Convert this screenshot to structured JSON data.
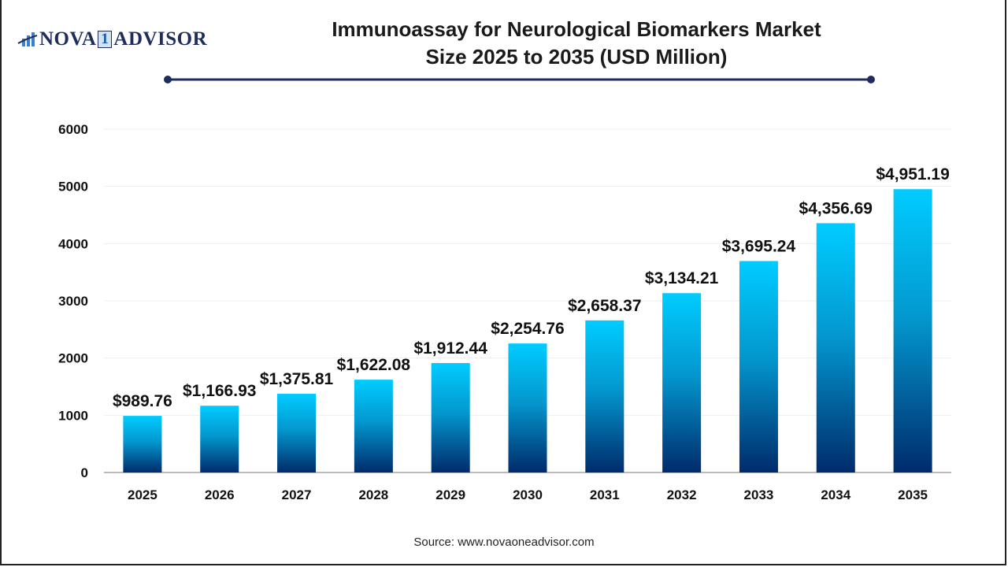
{
  "logo": {
    "text_left": "NOVA",
    "text_mid": "1",
    "text_right": "ADVISOR"
  },
  "title_line1": "Immunoassay for Neurological Biomarkers Market",
  "title_line2": "Size 2025 to 2035 (USD Million)",
  "source": "Source: www.novaoneadvisor.com",
  "colors": {
    "bar_top": "#00CCFF",
    "bar_bottom": "#002B6B",
    "title_rule": "#1f2d5c"
  },
  "chart_data": {
    "type": "bar",
    "categories": [
      "2025",
      "2026",
      "2027",
      "2028",
      "2029",
      "2030",
      "2031",
      "2032",
      "2033",
      "2034",
      "2035"
    ],
    "values": [
      989.76,
      1166.93,
      1375.81,
      1622.08,
      1912.44,
      2254.76,
      2658.37,
      3134.21,
      3695.24,
      4356.69,
      4951.19
    ],
    "data_labels": [
      "$989.76",
      "$1,166.93",
      "$1,375.81",
      "$1,622.08",
      "$1,912.44",
      "$2,254.76",
      "$2,658.37",
      "$3,134.21",
      "$3,695.24",
      "$4,356.69",
      "$4,951.19"
    ],
    "title": "Immunoassay for Neurological Biomarkers Market Size 2025 to 2035 (USD Million)",
    "xlabel": "",
    "ylabel": "",
    "ylim": [
      0,
      6000
    ],
    "yticks": [
      0,
      1000,
      2000,
      3000,
      4000,
      5000,
      6000
    ],
    "grid": true,
    "legend": "none"
  }
}
